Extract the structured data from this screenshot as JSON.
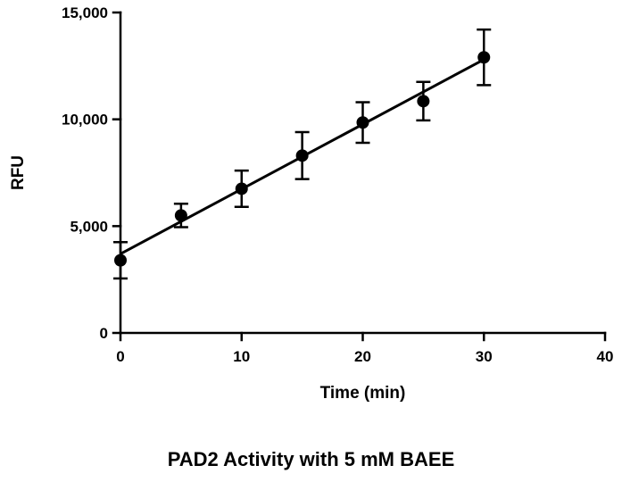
{
  "chart_data": {
    "type": "scatter",
    "title": "PAD2 Activity with 5 mM BAEE",
    "xlabel": "Time (min)",
    "ylabel": "RFU",
    "xlim": [
      0,
      40
    ],
    "ylim": [
      0,
      15000
    ],
    "x_ticks": [
      0,
      10,
      20,
      30,
      40
    ],
    "x_tick_labels": [
      "0",
      "10",
      "20",
      "30",
      "40"
    ],
    "y_ticks": [
      0,
      5000,
      10000,
      15000
    ],
    "y_tick_labels": [
      "0",
      "5,000",
      "10,000",
      "15,000"
    ],
    "grid": false,
    "legend": "none",
    "series": [
      {
        "x": [
          0,
          5,
          10,
          15,
          20,
          25,
          30
        ],
        "y": [
          3400,
          5500,
          6750,
          8300,
          9850,
          10850,
          12900
        ],
        "error": [
          850,
          550,
          850,
          1100,
          950,
          900,
          1300
        ],
        "marker": "circle",
        "color": "#000000"
      }
    ],
    "fit_line": {
      "x": [
        0,
        30
      ],
      "y": [
        3700,
        12800
      ],
      "color": "#000000"
    }
  }
}
